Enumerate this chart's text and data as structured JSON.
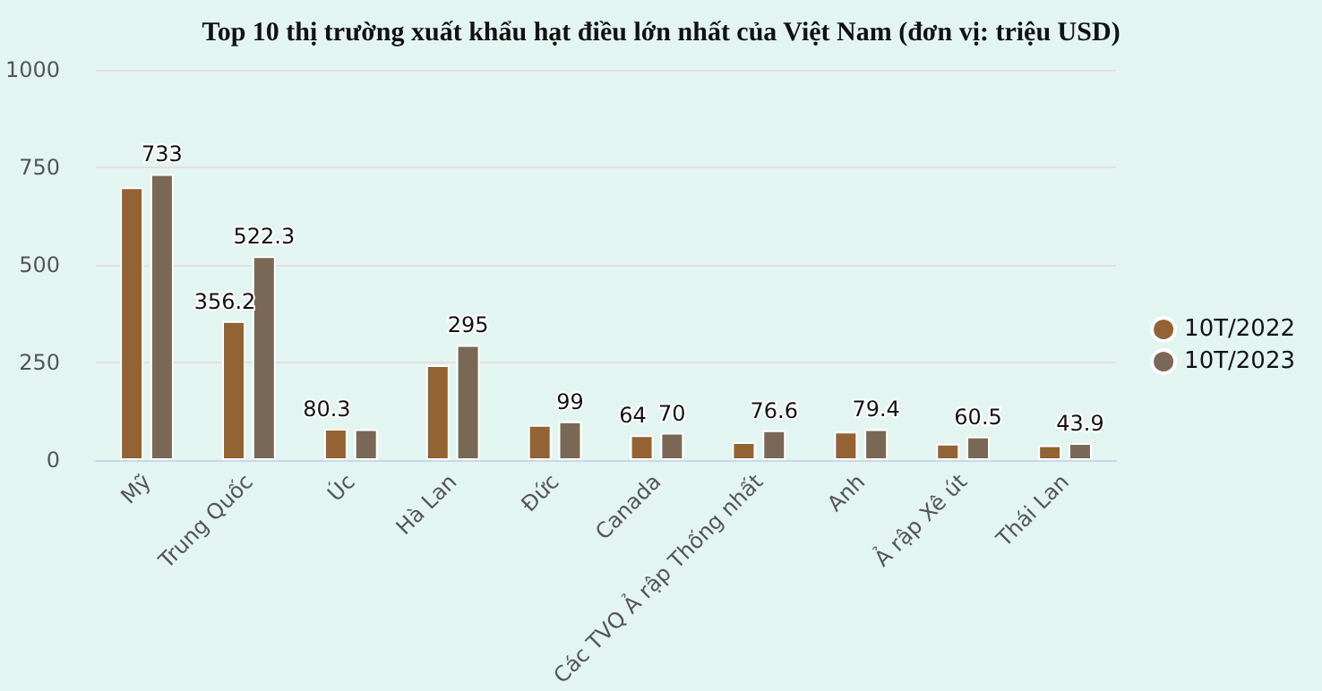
{
  "chart_data": {
    "type": "bar",
    "title": "Top 10 thị trường xuất khẩu hạt điều lớn nhất của Việt Nam (đơn vị: triệu USD)",
    "categories": [
      "Mỹ",
      "Trung Quốc",
      "Úc",
      "Hà Lan",
      "Đức",
      "Canada",
      "Các TVQ Ả rập Thống nhất",
      "Anh",
      "Ả rập Xê út",
      "Thái Lan"
    ],
    "series": [
      {
        "name": "10T/2022",
        "color": "#936333",
        "values": [
          699,
          356.2,
          80.3,
          243,
          90,
          64,
          46,
          73,
          42,
          38
        ],
        "value_labels": [
          null,
          "356.2",
          "80.3",
          null,
          null,
          "64",
          null,
          null,
          null,
          null
        ]
      },
      {
        "name": "10T/2023",
        "color": "#7a6856",
        "values": [
          733,
          522.3,
          79,
          295,
          99,
          70,
          76.6,
          79.4,
          60.5,
          43.9
        ],
        "value_labels": [
          "733",
          "522.3",
          null,
          "295",
          "99",
          "70",
          "76.6",
          "79.4",
          "60.5",
          "43.9"
        ]
      }
    ],
    "ylim": [
      0,
      1000
    ],
    "yticks": [
      0,
      250,
      500,
      750,
      1000
    ],
    "grid": "y",
    "legend": "right"
  }
}
